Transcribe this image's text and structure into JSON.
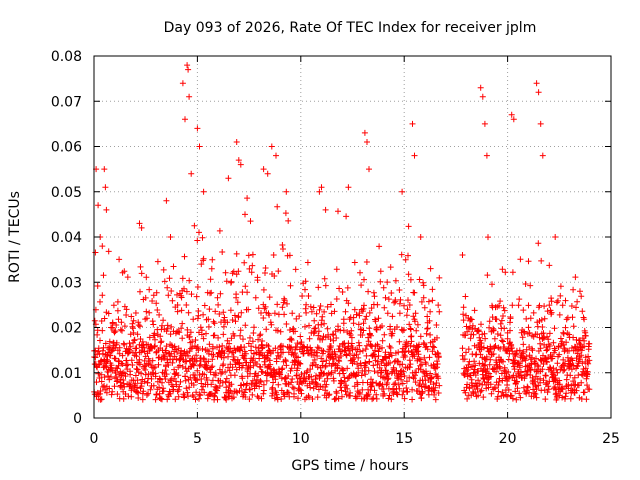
{
  "chart_data": {
    "type": "scatter",
    "title": "Day 093 of 2026, Rate Of TEC Index for receiver jplm",
    "xlabel": "GPS time / hours",
    "ylabel": "ROTI / TECUs",
    "xlim": [
      0,
      25
    ],
    "ylim": [
      0,
      0.08
    ],
    "x_ticks": [
      0,
      5,
      10,
      15,
      20,
      25
    ],
    "x_tick_labels": [
      "0",
      "5",
      "10",
      "15",
      "20",
      "25"
    ],
    "y_ticks": [
      0,
      0.01,
      0.02,
      0.03,
      0.04,
      0.05,
      0.06,
      0.07,
      0.08
    ],
    "y_tick_labels": [
      "0",
      "0.01",
      "0.02",
      "0.03",
      "0.04",
      "0.05",
      "0.06",
      "0.07",
      "0.08"
    ],
    "grid": true,
    "marker": "plus",
    "color": "#ff0000",
    "series": [
      {
        "name": "ROTI",
        "data_gaps_hours": [
          [
            16.7,
            17.8
          ]
        ],
        "sample_points": [
          [
            0.1,
            0.055
          ],
          [
            0.2,
            0.047
          ],
          [
            0.3,
            0.04
          ],
          [
            0.5,
            0.055
          ],
          [
            0.55,
            0.051
          ],
          [
            0.6,
            0.046
          ],
          [
            2.2,
            0.043
          ],
          [
            2.3,
            0.042
          ],
          [
            3.5,
            0.048
          ],
          [
            3.7,
            0.04
          ],
          [
            4.3,
            0.074
          ],
          [
            4.4,
            0.066
          ],
          [
            4.5,
            0.078
          ],
          [
            4.55,
            0.077
          ],
          [
            4.6,
            0.071
          ],
          [
            4.7,
            0.054
          ],
          [
            5.0,
            0.064
          ],
          [
            5.1,
            0.06
          ],
          [
            5.3,
            0.05
          ],
          [
            6.5,
            0.053
          ],
          [
            6.9,
            0.061
          ],
          [
            7.0,
            0.057
          ],
          [
            7.1,
            0.056
          ],
          [
            7.3,
            0.045
          ],
          [
            8.2,
            0.055
          ],
          [
            8.4,
            0.054
          ],
          [
            8.6,
            0.06
          ],
          [
            8.8,
            0.058
          ],
          [
            9.3,
            0.05
          ],
          [
            10.9,
            0.05
          ],
          [
            11.0,
            0.051
          ],
          [
            11.2,
            0.046
          ],
          [
            12.3,
            0.051
          ],
          [
            13.1,
            0.063
          ],
          [
            13.2,
            0.061
          ],
          [
            13.3,
            0.055
          ],
          [
            14.9,
            0.05
          ],
          [
            15.4,
            0.065
          ],
          [
            15.5,
            0.058
          ],
          [
            15.8,
            0.04
          ],
          [
            18.7,
            0.073
          ],
          [
            18.8,
            0.071
          ],
          [
            18.9,
            0.065
          ],
          [
            19.0,
            0.058
          ],
          [
            20.2,
            0.067
          ],
          [
            20.3,
            0.066
          ],
          [
            21.4,
            0.074
          ],
          [
            21.5,
            0.072
          ],
          [
            21.6,
            0.065
          ],
          [
            21.7,
            0.058
          ],
          [
            22.3,
            0.04
          ],
          [
            23.5,
            0.028
          ]
        ]
      }
    ]
  }
}
